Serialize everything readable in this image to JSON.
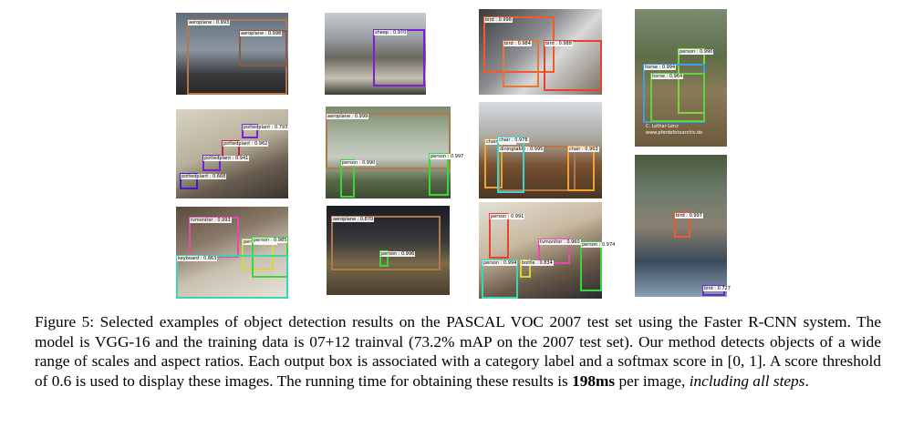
{
  "figure": {
    "panels": [
      {
        "detections": [
          {
            "label": "aeroplane : 0.993"
          },
          {
            "label": "aeroplane : 0.998"
          }
        ]
      },
      {
        "detections": [
          {
            "label": "sheep : 0.970"
          }
        ]
      },
      {
        "detections": [
          {
            "label": "bird : 0.998"
          },
          {
            "label": "bird : 0.988"
          },
          {
            "label": "bird : 0.984"
          }
        ]
      },
      {
        "detections": [
          {
            "label": "person : 0.990"
          },
          {
            "label": "horse : 0.994"
          },
          {
            "label": "horse : 0.964"
          }
        ],
        "watermark": [
          "C. Lothar Lenz",
          "www.pferdefotoarchiv.de"
        ]
      },
      {
        "detections": [
          {
            "label": "pottedplant : 0.793"
          },
          {
            "label": "pottedplant : 0.962"
          },
          {
            "label": "pottedplant : 0.941"
          },
          {
            "label": "pottedplant : 0.668"
          }
        ]
      },
      {
        "detections": [
          {
            "label": "aeroplane : 0.999"
          },
          {
            "label": "person : 0.990"
          },
          {
            "label": "person : 0.997"
          }
        ]
      },
      {
        "detections": [
          {
            "label": "chair : 0.984"
          },
          {
            "label": "diningtable : 0.995"
          },
          {
            "label": "chair : 0.978"
          },
          {
            "label": "chair : 0.963"
          }
        ]
      },
      {
        "detections": [
          {
            "label": "tvmonitor : 0.993"
          },
          {
            "label": "person : 0.970"
          },
          {
            "label": "person : 0.985"
          },
          {
            "label": "keyboard : 0.863"
          }
        ]
      },
      {
        "detections": [
          {
            "label": "aeroplane : 0.870"
          },
          {
            "label": "person : 0.996"
          }
        ]
      },
      {
        "detections": [
          {
            "label": "person : 0.991"
          },
          {
            "label": "person : 0.974"
          },
          {
            "label": "tvmonitor : 0.960"
          },
          {
            "label": "person : 0.994"
          },
          {
            "label": "bottle : 0.834"
          }
        ]
      },
      {
        "detections": [
          {
            "label": "bird : 0.997"
          },
          {
            "label": "bird : 0.727"
          }
        ]
      }
    ],
    "caption": {
      "text": "Figure 5: Selected examples of object detection results on the PASCAL VOC 2007 test set using the Faster R-CNN system. The model is VGG-16 and the training data is 07+12 trainval (73.2% mAP on the 2007 test set). Our method detects objects of a wide range of scales and aspect ratios. Each output box is associated with a category label and a softmax score in [0, 1]. A score threshold of 0.6 is used to display these images. The running time for obtaining these results is ",
      "bold": "198ms",
      "middle": " per image, ",
      "italic": "including all steps",
      "end": "."
    }
  }
}
